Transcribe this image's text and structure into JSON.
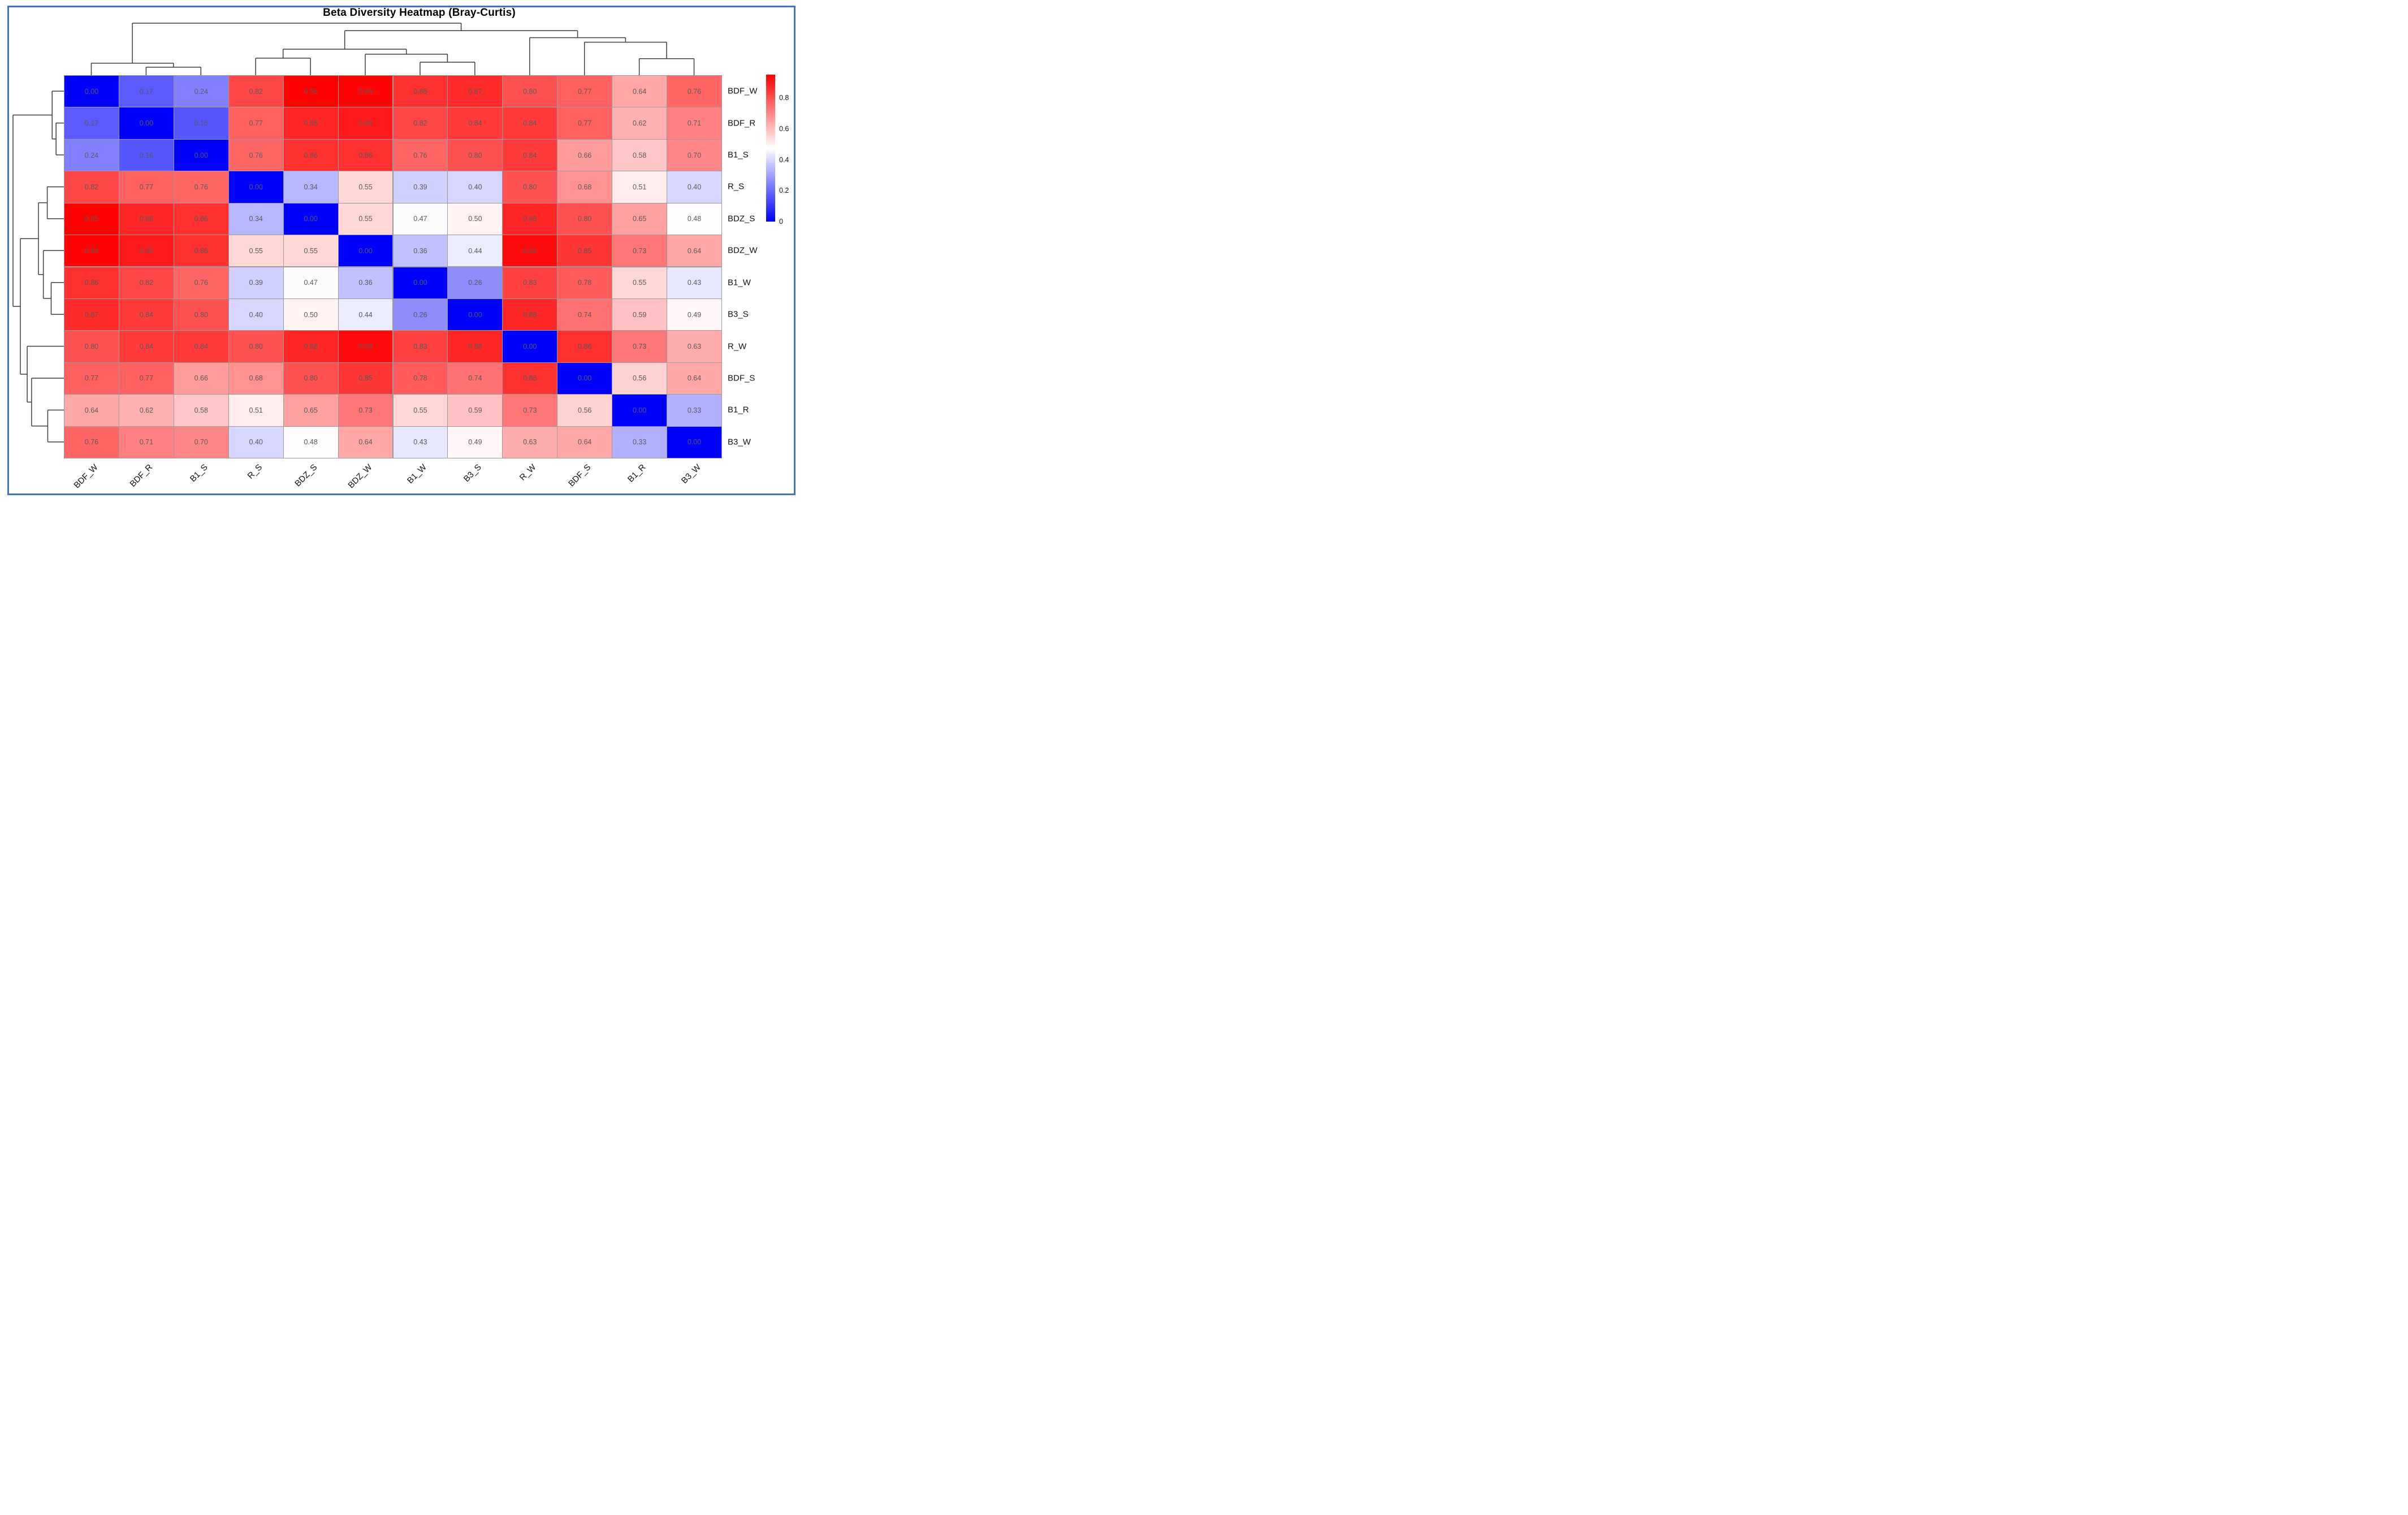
{
  "title": "Beta Diversity Heatmap (Bray-Curtis)",
  "colors": {
    "frame_accent": "#4472c4",
    "cell_text": "#595959",
    "grid_line": "#9a9a9a",
    "dendrogram_line": "#3c3c3c",
    "colormap_low": "#0000ff",
    "colormap_mid": "#ffffff",
    "colormap_high": "#ff0000"
  },
  "chart_data": {
    "type": "heatmap",
    "title": "Beta Diversity Heatmap (Bray-Curtis)",
    "metric": "Bray-Curtis dissimilarity",
    "colormap": "blue-white-red",
    "vmin": 0,
    "vmax": 0.95,
    "legend_position": "right",
    "colorbar_ticks": [
      {
        "label": "0.8",
        "value": 0.8
      },
      {
        "label": "0.6",
        "value": 0.6
      },
      {
        "label": "0.4",
        "value": 0.4
      },
      {
        "label": "0.2",
        "value": 0.2
      },
      {
        "label": "0",
        "value": 0.0
      }
    ],
    "row_labels": [
      "BDF_W",
      "BDF_R",
      "B1_S",
      "R_S",
      "BDZ_S",
      "BDZ_W",
      "B1_W",
      "B3_S",
      "R_W",
      "BDF_S",
      "B1_R",
      "B3_W"
    ],
    "col_labels": [
      "BDF_W",
      "BDF_R",
      "B1_S",
      "R_S",
      "BDZ_S",
      "BDZ_W",
      "B1_W",
      "B3_S",
      "R_W",
      "BDF_S",
      "B1_R",
      "B3_W"
    ],
    "matrix": [
      [
        0.0,
        0.17,
        0.24,
        0.82,
        0.95,
        0.94,
        0.86,
        0.87,
        0.8,
        0.77,
        0.64,
        0.76
      ],
      [
        0.17,
        0.0,
        0.16,
        0.77,
        0.88,
        0.9,
        0.82,
        0.84,
        0.84,
        0.77,
        0.62,
        0.71
      ],
      [
        0.24,
        0.16,
        0.0,
        0.76,
        0.86,
        0.86,
        0.76,
        0.8,
        0.84,
        0.66,
        0.58,
        0.7
      ],
      [
        0.82,
        0.77,
        0.76,
        0.0,
        0.34,
        0.55,
        0.39,
        0.4,
        0.8,
        0.68,
        0.51,
        0.4
      ],
      [
        0.95,
        0.88,
        0.86,
        0.34,
        0.0,
        0.55,
        0.47,
        0.5,
        0.88,
        0.8,
        0.65,
        0.48
      ],
      [
        0.94,
        0.9,
        0.86,
        0.55,
        0.55,
        0.0,
        0.36,
        0.44,
        0.93,
        0.85,
        0.73,
        0.64
      ],
      [
        0.86,
        0.82,
        0.76,
        0.39,
        0.47,
        0.36,
        0.0,
        0.26,
        0.83,
        0.78,
        0.55,
        0.43
      ],
      [
        0.87,
        0.84,
        0.8,
        0.4,
        0.5,
        0.44,
        0.26,
        0.0,
        0.88,
        0.74,
        0.59,
        0.49
      ],
      [
        0.8,
        0.84,
        0.84,
        0.8,
        0.88,
        0.93,
        0.83,
        0.88,
        0.0,
        0.86,
        0.73,
        0.63
      ],
      [
        0.77,
        0.77,
        0.66,
        0.68,
        0.8,
        0.85,
        0.78,
        0.74,
        0.86,
        0.0,
        0.56,
        0.64
      ],
      [
        0.64,
        0.62,
        0.58,
        0.51,
        0.65,
        0.73,
        0.55,
        0.59,
        0.73,
        0.56,
        0.0,
        0.33
      ],
      [
        0.76,
        0.71,
        0.7,
        0.4,
        0.48,
        0.64,
        0.43,
        0.49,
        0.63,
        0.64,
        0.33,
        0.0
      ]
    ],
    "dendrogram": {
      "note": "identical clustering on rows (left) and columns (top); leaf indices refer to row/col order above",
      "merges": [
        [
          1,
          2,
          0.16
        ],
        [
          0,
          12,
          0.24
        ],
        [
          6,
          7,
          0.26
        ],
        [
          3,
          4,
          0.34
        ],
        [
          10,
          11,
          0.33
        ],
        [
          5,
          14,
          0.42
        ],
        [
          15,
          17,
          0.52
        ],
        [
          9,
          16,
          0.66
        ],
        [
          8,
          19,
          0.75
        ],
        [
          18,
          20,
          0.89
        ],
        [
          13,
          21,
          1.04
        ]
      ]
    }
  }
}
